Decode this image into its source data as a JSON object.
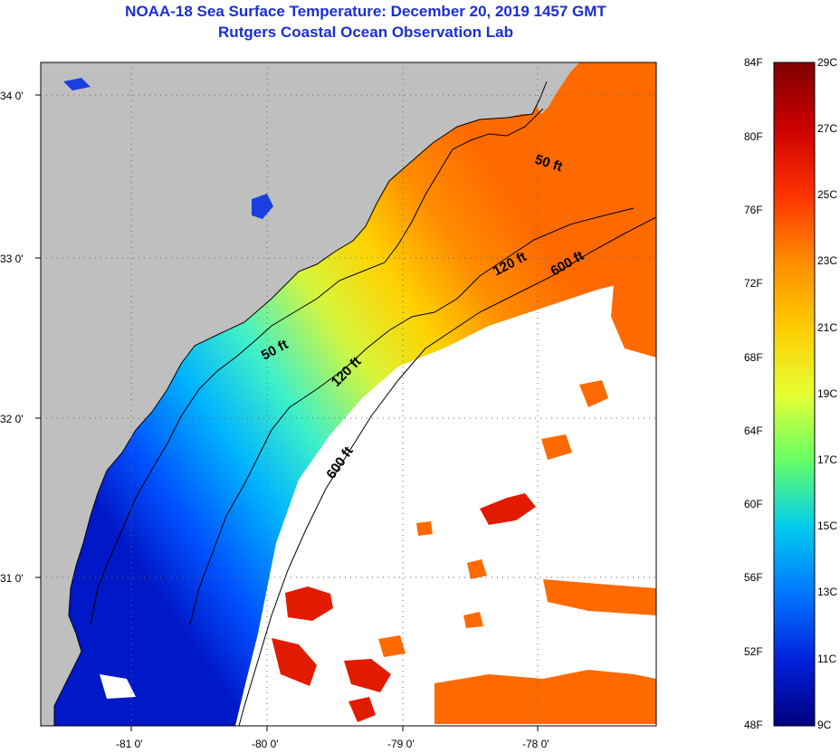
{
  "title": {
    "line1": "NOAA-18 Sea Surface Temperature:  December 20, 2019 1457 GMT",
    "line2": "Rutgers Coastal Ocean Observation Lab"
  },
  "map": {
    "lon_ticks": [
      "-81 0'",
      "-80 0'",
      "-79 0'",
      "-78 0'"
    ],
    "lat_ticks": [
      "34 0'",
      "33 0'",
      "32 0'",
      "31 0'"
    ],
    "contour_labels": [
      "50 ft",
      "50 ft",
      "120 ft",
      "120 ft",
      "600 ft",
      "600 ft"
    ],
    "colors": {
      "land": "#bfbfbf",
      "cloud": "#ffffff",
      "frame": "#000000"
    }
  },
  "colorbar": {
    "fahrenheit_labels": [
      "84F",
      "80F",
      "76F",
      "72F",
      "68F",
      "64F",
      "60F",
      "56F",
      "52F",
      "48F"
    ],
    "celsius_labels": [
      "29C",
      "27C",
      "25C",
      "23C",
      "21C",
      "19C",
      "17C",
      "15C",
      "13C",
      "11C",
      "9C"
    ],
    "gradient_stops": [
      "#7f0000",
      "#cc0000",
      "#ff3300",
      "#ff8c00",
      "#ffcc00",
      "#e6ff33",
      "#66ff66",
      "#00ccee",
      "#0077ff",
      "#0022dd",
      "#00007f"
    ]
  }
}
